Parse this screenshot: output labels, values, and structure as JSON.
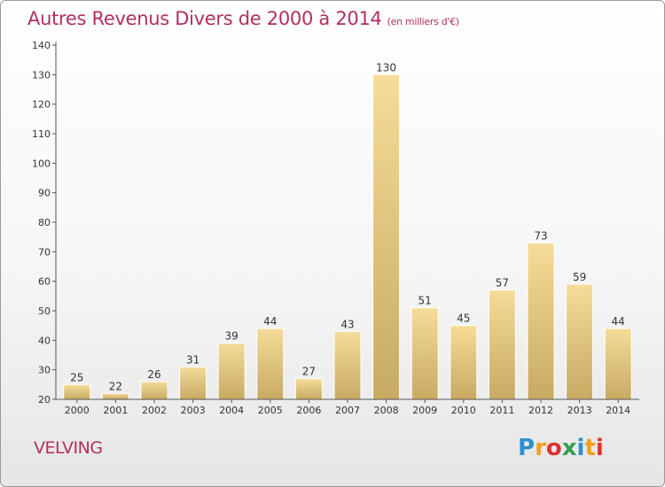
{
  "header": {
    "title": "Autres Revenus Divers de 2000 à 2014",
    "subtitle": "(en milliers d'€)"
  },
  "footer": {
    "commune": "VELVING",
    "logo_letters": [
      "P",
      "r",
      "o",
      "x",
      "i",
      "t",
      "i"
    ],
    "logo_colors": [
      "#2f8fd0",
      "#f0a020",
      "#e03030",
      "#30a050",
      "#2f8fd0",
      "#f0a020",
      "#e03030"
    ]
  },
  "colors": {
    "bar_light": "#f5dc98",
    "bar_dark": "#c8aa62",
    "axis": "#555555",
    "grid": "#d8d8d8"
  },
  "chart_data": {
    "type": "bar",
    "title": "Autres Revenus Divers de 2000 à 2014",
    "subtitle": "(en milliers d'€)",
    "categories": [
      "2000",
      "2001",
      "2002",
      "2003",
      "2004",
      "2005",
      "2006",
      "2007",
      "2008",
      "2009",
      "2010",
      "2011",
      "2012",
      "2013",
      "2014"
    ],
    "values": [
      25,
      22,
      26,
      31,
      39,
      44,
      27,
      43,
      130,
      51,
      45,
      57,
      73,
      59,
      44
    ],
    "ylim": [
      20,
      140
    ],
    "yticks": [
      20,
      30,
      40,
      50,
      60,
      70,
      80,
      90,
      100,
      110,
      120,
      130,
      140
    ],
    "xlabel": "",
    "ylabel": "",
    "grid": false,
    "data_labels": true
  }
}
